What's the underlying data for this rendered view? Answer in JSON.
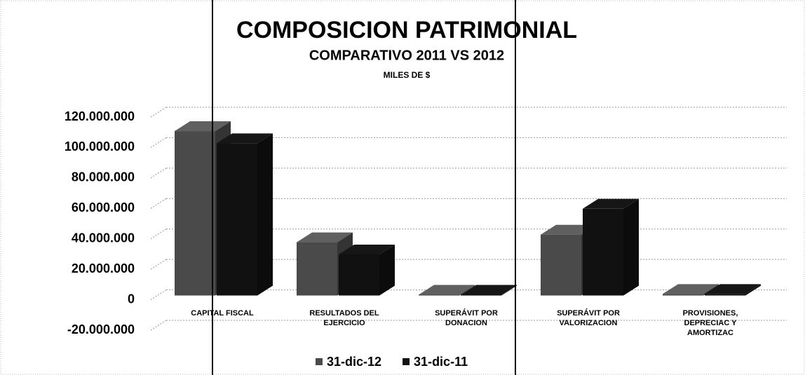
{
  "chart_data": {
    "type": "bar3d",
    "title": "COMPOSICION PATRIMONIAL",
    "subtitle": "COMPARATIVO 2011 VS 2012",
    "units": "MILES DE $",
    "categories": [
      "CAPITAL FISCAL",
      "RESULTADOS DEL EJERCICIO",
      "SUPERÁVIT POR DONACION",
      "SUPERÁVIT POR VALORIZACION",
      "PROVISIONES, DEPRECIAC Y AMORTIZAC"
    ],
    "series": [
      {
        "name": "31-dic-12",
        "color": "#4a4a4a",
        "values": [
          108000000,
          35000000,
          500000,
          40000000,
          1000000
        ]
      },
      {
        "name": "31-dic-11",
        "color": "#111111",
        "values": [
          100000000,
          27000000,
          500000,
          57000000,
          1000000
        ]
      }
    ],
    "ylim": [
      -20000000,
      120000000
    ],
    "yticks": [
      {
        "value": -20000000,
        "label": "-20.000.000"
      },
      0,
      {
        "value": 20000000,
        "label": "20.000.000"
      },
      {
        "value": 40000000,
        "label": "40.000.000"
      },
      {
        "value": 60000000,
        "label": "60.000.000"
      },
      {
        "value": 80000000,
        "label": "80.000.000"
      },
      {
        "value": 100000000,
        "label": "100.000.000"
      },
      {
        "value": 120000000,
        "label": "120.000.000"
      }
    ],
    "grid": true,
    "legend": "bottom"
  }
}
